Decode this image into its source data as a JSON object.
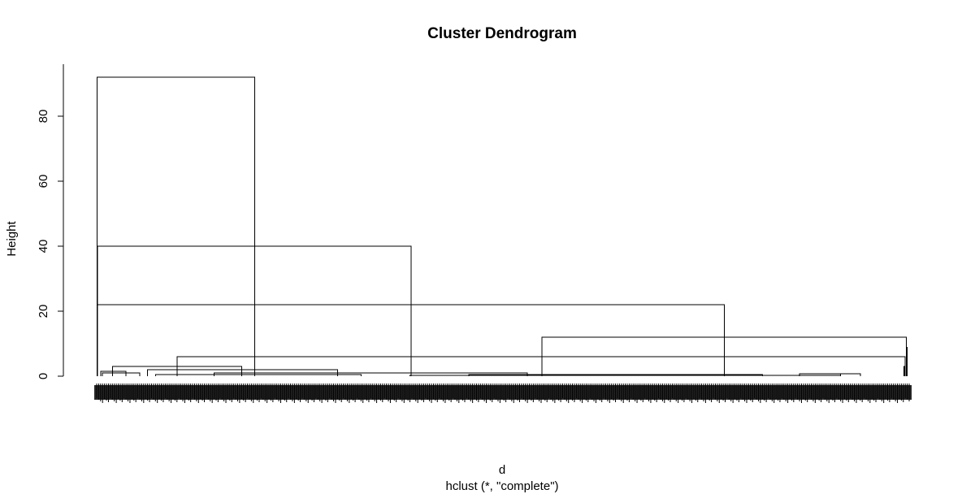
{
  "chart_data": {
    "type": "dendrogram",
    "title": "Cluster Dendrogram",
    "xlabel": "d",
    "sublabel": "hclust (*, \"complete\")",
    "ylabel": "Height",
    "ylim": [
      0,
      95
    ],
    "yticks": [
      "0",
      "20",
      "40",
      "60",
      "80"
    ],
    "merges": [
      {
        "height": 92,
        "left": 0.2,
        "right": 80.7
      },
      {
        "height": 40,
        "left": 0.5,
        "right": 160.7
      },
      {
        "height": 22,
        "left": 0.5,
        "right": 320.5
      },
      {
        "height": 12,
        "left": 227.5,
        "right": 413.5
      },
      {
        "height": 6,
        "left": 41,
        "right": 413
      },
      {
        "height": 3,
        "left": 8,
        "right": 74
      },
      {
        "height": 2,
        "left": 26,
        "right": 123
      },
      {
        "height": 1.5,
        "left": 2,
        "right": 15
      },
      {
        "height": 1,
        "left": 3,
        "right": 22
      },
      {
        "height": 1,
        "left": 60,
        "right": 220
      },
      {
        "height": 0.7,
        "left": 390,
        "right": 380
      },
      {
        "height": 0.5,
        "left": 30,
        "right": 135
      },
      {
        "height": 0.5,
        "left": 190,
        "right": 340
      },
      {
        "height": 0.3,
        "left": 160,
        "right": 380
      },
      {
        "height": 0.8,
        "left": 359,
        "right": 380
      },
      {
        "height": 9,
        "left": 414,
        "right": 414
      },
      {
        "height": 3,
        "left": 412.3,
        "right": 412.8
      }
    ],
    "leaf_count": 416
  }
}
